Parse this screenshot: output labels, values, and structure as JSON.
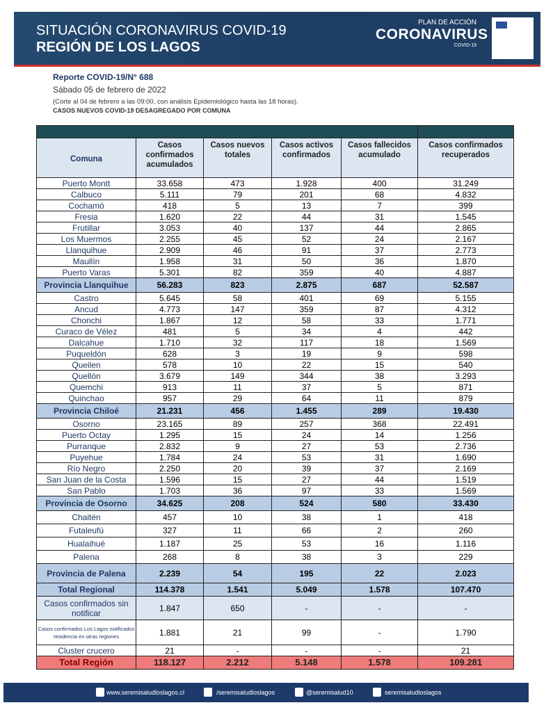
{
  "header": {
    "title": "SITUACIÓN CORONAVIRUS COVID-19",
    "subtitle": "REGIÓN DE LOS LAGOS",
    "logo_small": "PLAN DE ACCIÓN",
    "logo_big": "CORONAVIRUS",
    "logo_tag": "COVID-19"
  },
  "report": {
    "number": "Reporte COVID-19/N° 688",
    "date": "Sábado  05 de febrero  de 2022",
    "note": "(Corte al  04  de febrero a las 09:00, con análisis Epidemiológico hasta las 18 horas).",
    "caption": "CASOS NUEVOS COVID-19 DESAGREGADO POR COMUNA"
  },
  "table": {
    "columns": [
      "Comuna",
      "Casos confirmados acumulados",
      "Casos nuevos totales",
      "Casos activos confirmados",
      "Casos fallecidos acumulado",
      "Casos  confirmados recuperados"
    ],
    "groups": [
      {
        "rows": [
          [
            "Puerto Montt",
            "33.658",
            "473",
            "1.928",
            "400",
            "31.249"
          ],
          [
            "Calbuco",
            "5.111",
            "79",
            "201",
            "68",
            "4.832"
          ],
          [
            "Cochamó",
            "418",
            "5",
            "13",
            "7",
            "399"
          ],
          [
            "Fresia",
            "1.620",
            "22",
            "44",
            "31",
            "1.545"
          ],
          [
            "Frutillar",
            "3.053",
            "40",
            "137",
            "44",
            "2.865"
          ],
          [
            "Los Muermos",
            "2.255",
            "45",
            "52",
            "24",
            "2.167"
          ],
          [
            "Llanquihue",
            "2.909",
            "46",
            "91",
            "37",
            "2.773"
          ],
          [
            "Maullín",
            "1.958",
            "31",
            "50",
            "36",
            "1.870"
          ],
          [
            "Puerto Varas",
            "5.301",
            "82",
            "359",
            "40",
            "4.887"
          ]
        ],
        "total": [
          "Provincia Llanquihue",
          "56.283",
          "823",
          "2.875",
          "687",
          "52.587"
        ]
      },
      {
        "rows": [
          [
            "Castro",
            "5.645",
            "58",
            "401",
            "69",
            "5.155"
          ],
          [
            "Ancud",
            "4.773",
            "147",
            "359",
            "87",
            "4.312"
          ],
          [
            "Chonchi",
            "1.867",
            "12",
            "58",
            "33",
            "1.771"
          ],
          [
            "Curaco de Vélez",
            "481",
            "5",
            "34",
            "4",
            "442"
          ],
          [
            "Dalcahue",
            "1.710",
            "32",
            "117",
            "18",
            "1.569"
          ],
          [
            "Puqueldón",
            "628",
            "3",
            "19",
            "9",
            "598"
          ],
          [
            "Queilen",
            "578",
            "10",
            "22",
            "15",
            "540"
          ],
          [
            "Quellón",
            "3.679",
            "149",
            "344",
            "38",
            "3.293"
          ],
          [
            "Quemchi",
            "913",
            "11",
            "37",
            "5",
            "871"
          ],
          [
            "Quinchao",
            "957",
            "29",
            "64",
            "11",
            "879"
          ]
        ],
        "total": [
          "Provincia  Chiloé",
          "21.231",
          "456",
          "1.455",
          "289",
          "19.430"
        ]
      },
      {
        "rows": [
          [
            "Osorno",
            "23.165",
            "89",
            "257",
            "368",
            "22.491"
          ],
          [
            "Puerto Octay",
            "1.295",
            "15",
            "24",
            "14",
            "1.256"
          ],
          [
            "Purranque",
            "2.832",
            "9",
            "27",
            "53",
            "2.736"
          ],
          [
            "Puyehue",
            "1.784",
            "24",
            "53",
            "31",
            "1.690"
          ],
          [
            "Río Negro",
            "2.250",
            "20",
            "39",
            "37",
            "2.169"
          ],
          [
            "San Juan de la Costa",
            "1.596",
            "15",
            "27",
            "44",
            "1.519"
          ],
          [
            "San Pablo",
            "1.703",
            "36",
            "97",
            "33",
            "1.569"
          ]
        ],
        "total": [
          "Provincia de Osorno",
          "34.625",
          "208",
          "524",
          "580",
          "33.430"
        ]
      },
      {
        "rows": [
          [
            "Chaitén",
            "457",
            "10",
            "38",
            "1",
            "418"
          ],
          [
            "Futaleufú",
            "327",
            "11",
            "66",
            "2",
            "260"
          ],
          [
            "Hualaihué",
            "1.187",
            "25",
            "53",
            "16",
            "1.116"
          ],
          [
            "Palena",
            "268",
            "8",
            "38",
            "3",
            "229"
          ]
        ],
        "total": [
          "Provincia de Palena",
          "2.239",
          "54",
          "195",
          "22",
          "2.023"
        ]
      }
    ],
    "summary": [
      [
        "Total Regional",
        "114.378",
        "1.541",
        "5.049",
        "1.578",
        "107.470"
      ],
      [
        "Casos confirmados sin notificar",
        "1.847",
        "650",
        "-",
        "-",
        "-"
      ],
      [
        "Casos confirmados Los  Lagos notificados  residencia en otras  regiones",
        "1.881",
        "21",
        "99",
        "-",
        "1.790"
      ],
      [
        "Cluster crucero",
        "21",
        "-",
        "-",
        "-",
        "21"
      ]
    ],
    "grand_total": [
      "Total Región",
      "118.127",
      "2.212",
      "5.148",
      "1.578",
      "109.281"
    ]
  },
  "footer": [
    "www.seremisaludloslagos.cl",
    "/seremisaludloslagos",
    "@seremisalud10",
    "seremisaludloslagos"
  ]
}
